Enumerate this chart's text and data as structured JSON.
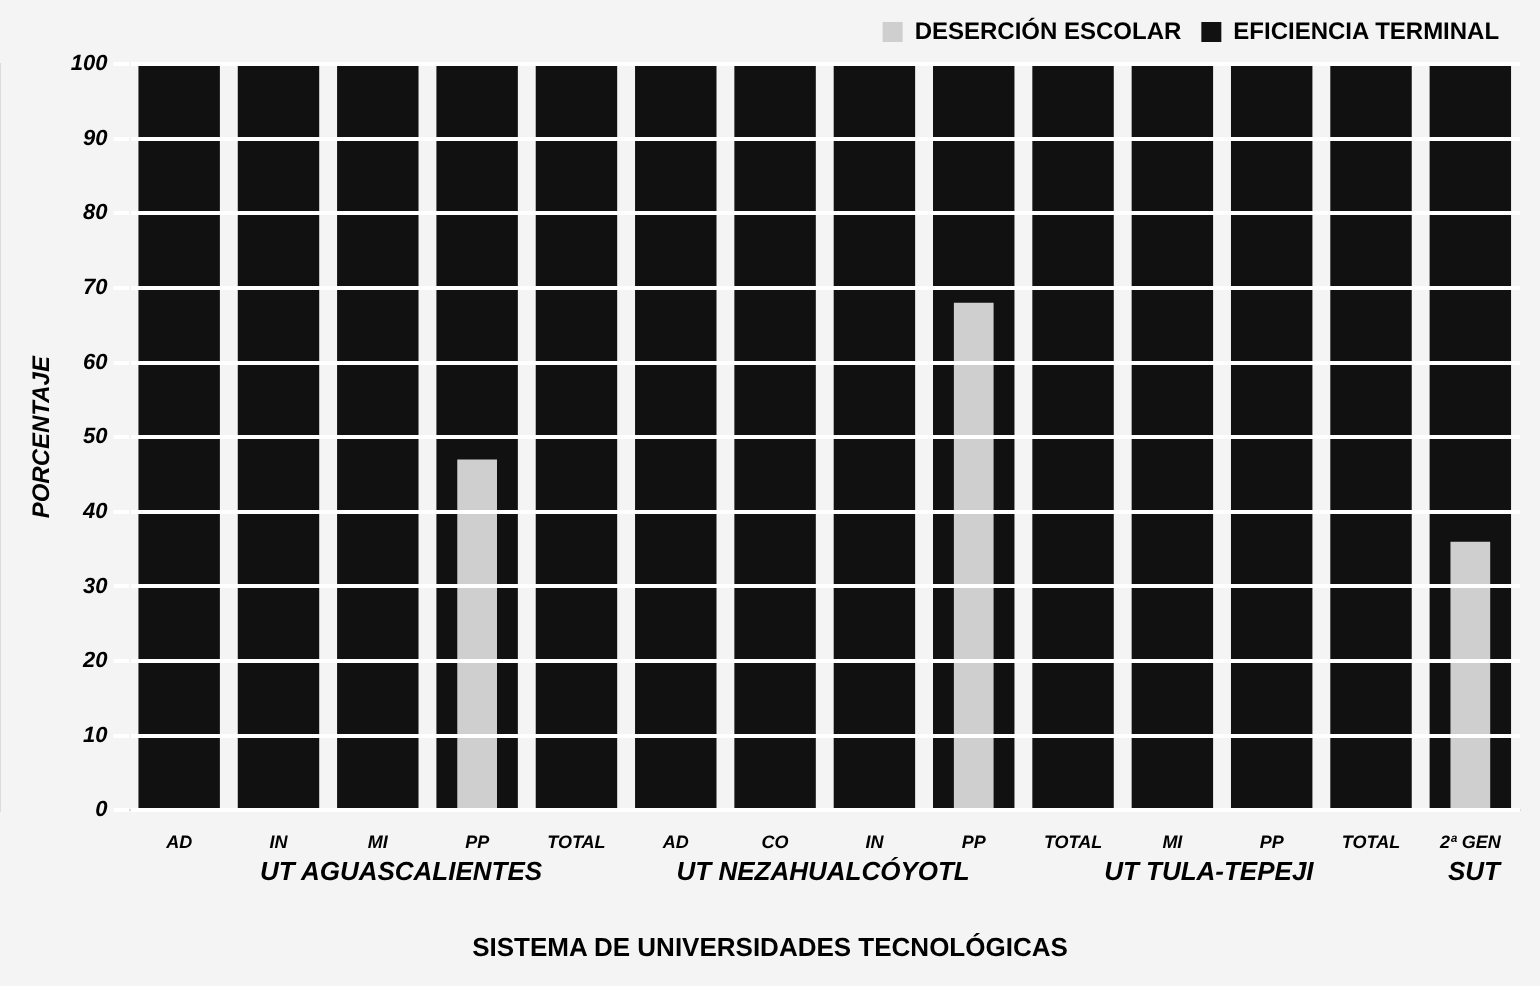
{
  "chart_data": {
    "type": "bar",
    "xlabel": "SISTEMA DE UNIVERSIDADES TECNOLÓGICAS",
    "ylabel": "PORCENTAJE",
    "categories": [
      "AD",
      "IN",
      "MI",
      "PP",
      "TOTAL",
      "AD",
      "CO",
      "IN",
      "PP",
      "TOTAL",
      "MI",
      "PP",
      "TOTAL",
      "2ª GEN"
    ],
    "series": [
      {
        "name": "EFICIENCIA TERMINAL",
        "color": "#111111",
        "values": [
          100,
          100,
          100,
          100,
          100,
          100,
          100,
          100,
          100,
          100,
          100,
          100,
          100,
          100
        ]
      },
      {
        "name": "DESERCIÓN ESCOLAR",
        "color": "#cfcfcf",
        "values": [
          null,
          null,
          null,
          47,
          null,
          null,
          null,
          null,
          68,
          null,
          null,
          null,
          null,
          36
        ]
      }
    ],
    "ylim": [
      0,
      100
    ],
    "yticks": [
      0,
      10,
      20,
      30,
      40,
      50,
      60,
      70,
      80,
      90,
      100
    ],
    "grid": "y",
    "legend": "top right",
    "annotations": [
      "UT AGUASCALIENTES",
      "UT NEZAHUALCÓYOTL",
      "UT TULA-TEPEJI",
      "SUT"
    ]
  }
}
